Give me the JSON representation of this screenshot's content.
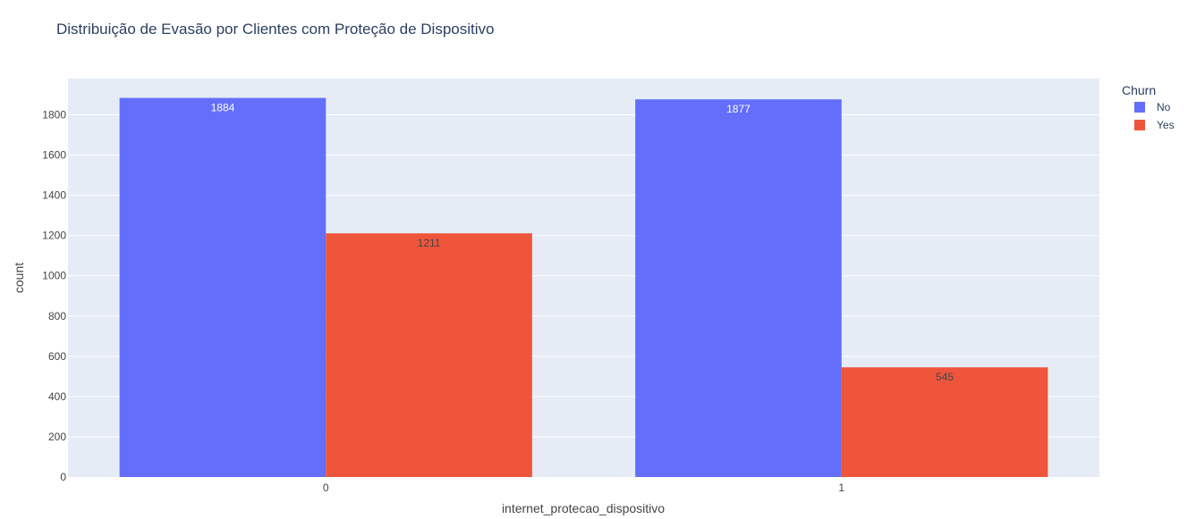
{
  "chart_data": {
    "type": "bar",
    "title": "Distribuição de Evasão por Clientes com Proteção de Dispositivo",
    "xlabel": "internet_protecao_dispositivo",
    "ylabel": "count",
    "categories": [
      "0",
      "1"
    ],
    "series": [
      {
        "name": "No",
        "values": [
          1884,
          1877
        ],
        "color": "#636efa",
        "label_color": "#ffffff"
      },
      {
        "name": "Yes",
        "values": [
          1211,
          545
        ],
        "color": "#ef553b",
        "label_color": "#444444"
      }
    ],
    "ylim": [
      0,
      1980
    ],
    "yticks": [
      0,
      200,
      400,
      600,
      800,
      1000,
      1200,
      1400,
      1600,
      1800
    ],
    "grid": true,
    "barmode": "group",
    "legend": {
      "title": "Churn",
      "placement": "top-right"
    },
    "plot_background": "#e5ecf6"
  }
}
